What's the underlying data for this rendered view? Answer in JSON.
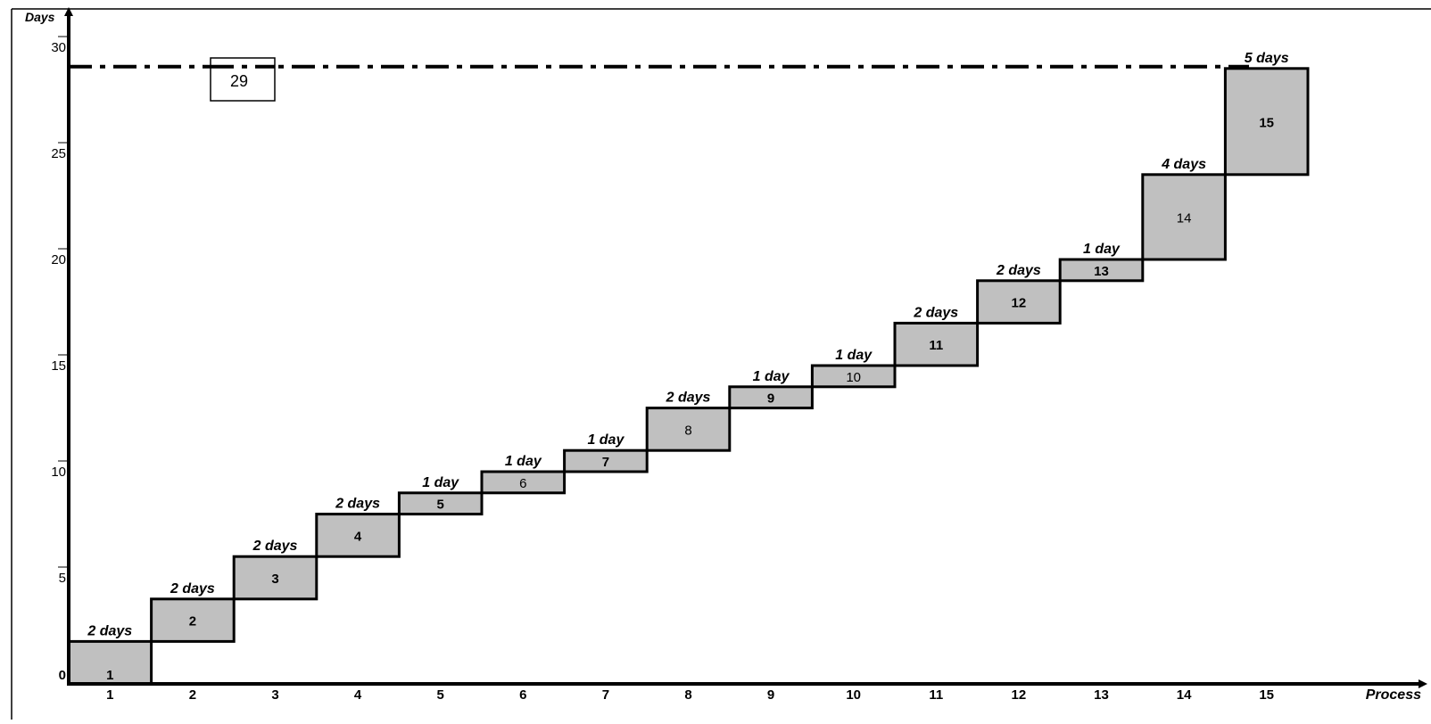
{
  "chart_data": {
    "type": "bar",
    "title": "",
    "xlabel": "Process",
    "ylabel": "Days",
    "ylim": [
      0,
      32
    ],
    "y_ticks": [
      "0",
      "5",
      "10",
      "15",
      "20",
      "25",
      "30"
    ],
    "grid": false,
    "categories": [
      "1",
      "2",
      "3",
      "4",
      "5",
      "6",
      "7",
      "8",
      "9",
      "10",
      "11",
      "12",
      "13",
      "14",
      "15"
    ],
    "processes": [
      {
        "label": "1",
        "start": 0,
        "end": 2,
        "duration_label": "2 days",
        "bold": true
      },
      {
        "label": "2",
        "start": 2,
        "end": 4,
        "duration_label": "2 days",
        "bold": true
      },
      {
        "label": "3",
        "start": 4,
        "end": 6,
        "duration_label": "2 days",
        "bold": true
      },
      {
        "label": "4",
        "start": 6,
        "end": 8,
        "duration_label": "2 days",
        "bold": true
      },
      {
        "label": "5",
        "start": 8,
        "end": 9,
        "duration_label": "1 day",
        "bold": true
      },
      {
        "label": "6",
        "start": 9,
        "end": 10,
        "duration_label": "1 day",
        "bold": false
      },
      {
        "label": "7",
        "start": 10,
        "end": 11,
        "duration_label": "1 day",
        "bold": true
      },
      {
        "label": "8",
        "start": 11,
        "end": 13,
        "duration_label": "2 days",
        "bold": false
      },
      {
        "label": "9",
        "start": 13,
        "end": 14,
        "duration_label": "1 day",
        "bold": true
      },
      {
        "label": "10",
        "start": 14,
        "end": 15,
        "duration_label": "1 day",
        "bold": false
      },
      {
        "label": "11",
        "start": 15,
        "end": 17,
        "duration_label": "2 days",
        "bold": true
      },
      {
        "label": "12",
        "start": 17,
        "end": 19,
        "duration_label": "2 days",
        "bold": true
      },
      {
        "label": "13",
        "start": 19,
        "end": 20,
        "duration_label": "1 day",
        "bold": true
      },
      {
        "label": "14",
        "start": 20,
        "end": 24,
        "duration_label": "4 days",
        "bold": false
      },
      {
        "label": "15",
        "start": 24,
        "end": 29,
        "duration_label": "5 days",
        "bold": true
      }
    ],
    "total_line": {
      "value": 29,
      "label": "29",
      "style": "dash-dot"
    },
    "colors": {
      "bar_fill": "#c0c0c0",
      "bar_stroke": "#000000",
      "axis": "#000000",
      "background": "#ffffff"
    }
  }
}
